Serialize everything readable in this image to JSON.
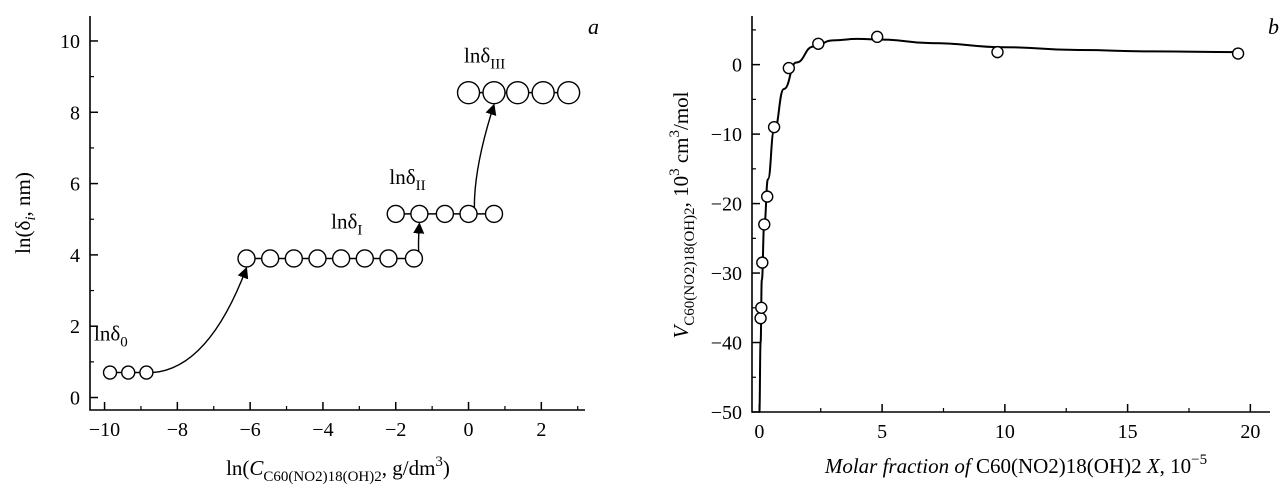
{
  "chart_data": [
    {
      "type": "scatter",
      "panel_label": "a",
      "xlabel_parts": {
        "pre": "ln(",
        "var": "C",
        "sub": "C60(NO2)18(OH)2",
        "post": ", g/dm",
        "sup": "3",
        "close": ")"
      },
      "ylabel_parts": {
        "pre": "ln(δ",
        "sub": "i",
        "post": ", nm)"
      },
      "xlim": [
        -10.4,
        3.2
      ],
      "ylim": [
        -0.35,
        10.7
      ],
      "xticks": [
        -10,
        -8,
        -6,
        -4,
        -2,
        0,
        2
      ],
      "xtick_labels": [
        "−10",
        "−8",
        "−6",
        "−4",
        "−2",
        "0",
        "2"
      ],
      "yticks": [
        0,
        2,
        4,
        6,
        8,
        10
      ],
      "ytick_labels": [
        "0",
        "2",
        "4",
        "6",
        "8",
        "10"
      ],
      "grid": false,
      "series": [
        {
          "label_base": "lnδ",
          "label_sub": "0",
          "x": [
            -9.85,
            -9.35,
            -8.85
          ],
          "y": [
            0.7,
            0.7,
            0.7
          ],
          "marker": "small"
        },
        {
          "label_base": "lnδ",
          "label_sub": "I",
          "x": [
            -6.1,
            -5.45,
            -4.8,
            -4.15,
            -3.5,
            -2.85,
            -2.2,
            -1.5
          ],
          "y": [
            3.9,
            3.9,
            3.9,
            3.9,
            3.9,
            3.9,
            3.9,
            3.9
          ],
          "marker": "medium"
        },
        {
          "label_base": "lnδ",
          "label_sub": "II",
          "x": [
            -2.0,
            -1.35,
            -0.65,
            0.0,
            0.7
          ],
          "y": [
            5.15,
            5.15,
            5.15,
            5.15,
            5.15
          ],
          "marker": "medium"
        },
        {
          "label_base": "lnδ",
          "label_sub": "III",
          "x": [
            0.0,
            0.7,
            1.35,
            2.05,
            2.75
          ],
          "y": [
            8.55,
            8.55,
            8.55,
            8.55,
            8.55
          ],
          "marker": "large"
        }
      ],
      "arrows": [
        {
          "from": [
            -8.85,
            0.7
          ],
          "to": [
            -6.1,
            3.9
          ]
        },
        {
          "from": [
            -1.5,
            3.9
          ],
          "to": [
            -1.35,
            5.15
          ]
        },
        {
          "from": [
            0.0,
            5.15
          ],
          "to": [
            0.7,
            8.55
          ]
        }
      ]
    },
    {
      "type": "line",
      "panel_label": "b",
      "xlabel_parts": {
        "pre": "Molar fraction of ",
        "formula": "C60(NO2)18(OH)2",
        "var": " X",
        "post": ", 10",
        "sup": "−5"
      },
      "ylabel_parts": {
        "var": "V",
        "sub": "C60(NO2)18(OH)2",
        "post": ", 10",
        "sup": "3",
        "post2": " cm",
        "sup2": "3",
        "post3": "/mol"
      },
      "xlim": [
        -0.3,
        20.8
      ],
      "ylim": [
        -50,
        7
      ],
      "xticks": [
        0,
        5,
        10,
        15,
        20
      ],
      "xtick_labels": [
        "0",
        "5",
        "10",
        "15",
        "20"
      ],
      "yticks": [
        -50,
        -40,
        -30,
        -20,
        -10,
        0
      ],
      "ytick_labels": [
        "−50",
        "−40",
        "−30",
        "−20",
        "−10",
        "0"
      ],
      "grid": false,
      "points": {
        "x": [
          0.05,
          0.08,
          0.12,
          0.2,
          0.32,
          0.6,
          1.2,
          2.4,
          4.8,
          9.7,
          19.5
        ],
        "y": [
          -36.5,
          -35,
          -28.5,
          -23,
          -19,
          -9,
          -0.5,
          3,
          4,
          1.8,
          1.6
        ]
      },
      "curve": {
        "x": [
          0.0,
          0.05,
          0.1,
          0.2,
          0.35,
          0.6,
          1.0,
          1.5,
          2.2,
          3.0,
          4.0,
          5.0,
          7.0,
          10.0,
          13.0,
          16.0,
          19.5
        ],
        "y": [
          -50,
          -40,
          -31,
          -23,
          -16.5,
          -9.5,
          -3.5,
          0.3,
          2.6,
          3.5,
          3.7,
          3.6,
          3.1,
          2.5,
          2.1,
          1.9,
          1.8
        ]
      }
    }
  ]
}
